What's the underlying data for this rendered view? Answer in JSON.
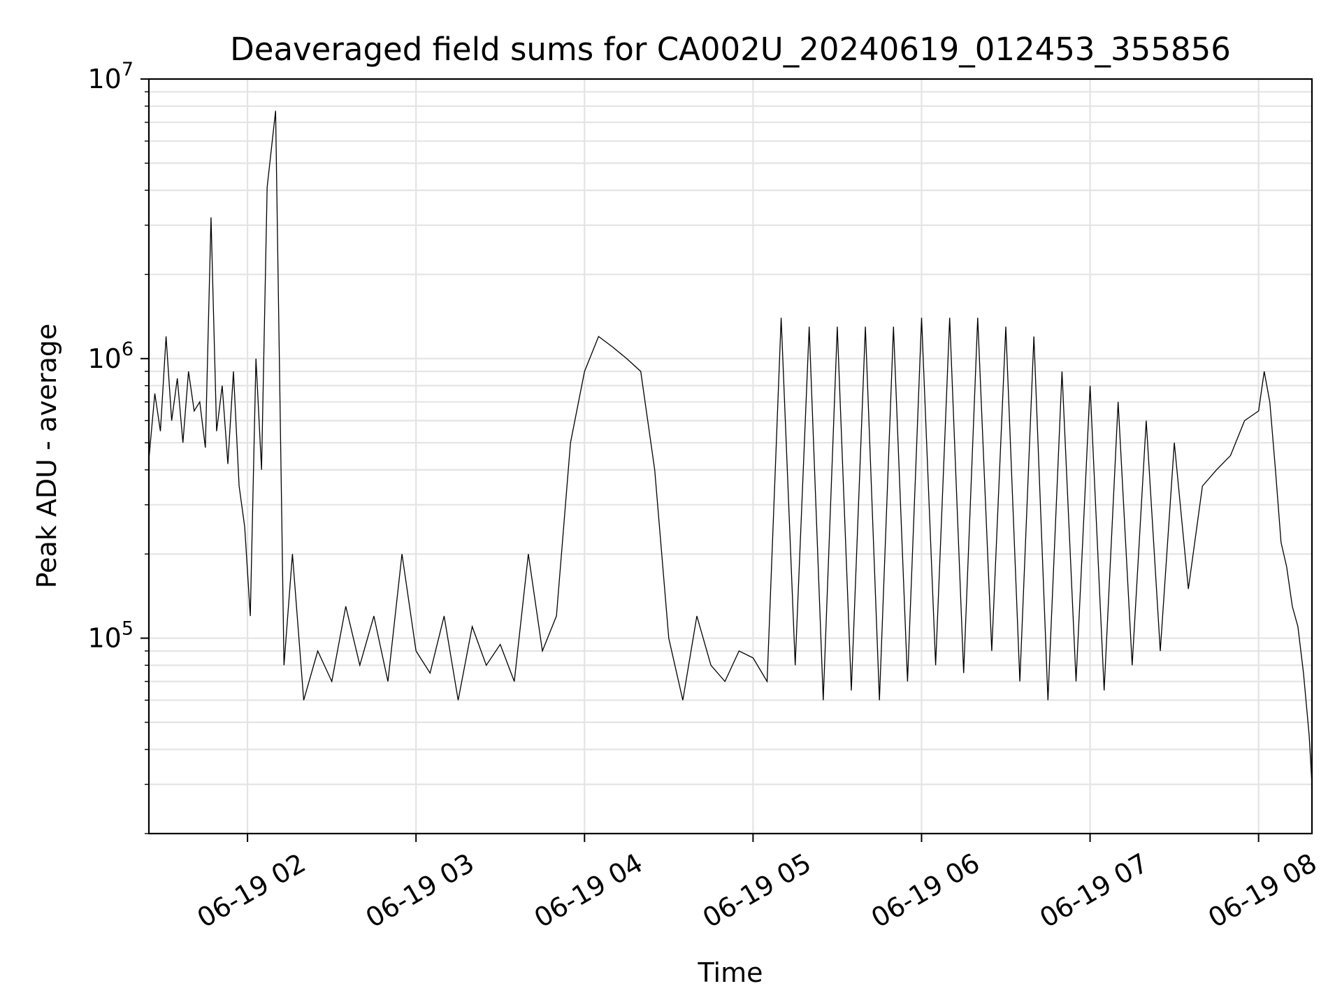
{
  "chart_data": {
    "type": "line",
    "title": "Deaveraged field sums for CA002U_20240619_012453_355856",
    "xlabel": "Time",
    "ylabel": "Peak ADU - average",
    "y_scale": "log",
    "ylim": [
      20000,
      10000000
    ],
    "xlim": [
      "06-19 01:24:53",
      "06-19 08:19:00"
    ],
    "x_ticks": [
      {
        "value": "06-19 02:00",
        "label": "06-19 02"
      },
      {
        "value": "06-19 03:00",
        "label": "06-19 03"
      },
      {
        "value": "06-19 04:00",
        "label": "06-19 04"
      },
      {
        "value": "06-19 05:00",
        "label": "06-19 05"
      },
      {
        "value": "06-19 06:00",
        "label": "06-19 06"
      },
      {
        "value": "06-19 07:00",
        "label": "06-19 07"
      },
      {
        "value": "06-19 08:00",
        "label": "06-19 08"
      }
    ],
    "y_ticks": [
      {
        "value": 100000,
        "base": "10",
        "exp": "5"
      },
      {
        "value": 1000000,
        "base": "10",
        "exp": "6"
      },
      {
        "value": 10000000,
        "base": "10",
        "exp": "7"
      }
    ],
    "grid": true,
    "line_color": "#000000",
    "series": [
      {
        "x": [
          "06-19 01:25",
          "06-19 01:27",
          "06-19 01:29",
          "06-19 01:31",
          "06-19 01:33",
          "06-19 01:35",
          "06-19 01:37",
          "06-19 01:39",
          "06-19 01:41",
          "06-19 01:43",
          "06-19 01:45",
          "06-19 01:47",
          "06-19 01:49",
          "06-19 01:51",
          "06-19 01:53",
          "06-19 01:55",
          "06-19 01:57",
          "06-19 01:59",
          "06-19 02:01",
          "06-19 02:03",
          "06-19 02:05",
          "06-19 02:07",
          "06-19 02:10",
          "06-19 02:13",
          "06-19 02:16",
          "06-19 02:20",
          "06-19 02:25",
          "06-19 02:30",
          "06-19 02:35",
          "06-19 02:40",
          "06-19 02:45",
          "06-19 02:50",
          "06-19 02:55",
          "06-19 03:00",
          "06-19 03:05",
          "06-19 03:10",
          "06-19 03:15",
          "06-19 03:20",
          "06-19 03:25",
          "06-19 03:30",
          "06-19 03:35",
          "06-19 03:40",
          "06-19 03:45",
          "06-19 03:50",
          "06-19 03:55",
          "06-19 04:00",
          "06-19 04:05",
          "06-19 04:10",
          "06-19 04:15",
          "06-19 04:20",
          "06-19 04:25",
          "06-19 04:30",
          "06-19 04:35",
          "06-19 04:40",
          "06-19 04:45",
          "06-19 04:50",
          "06-19 04:55",
          "06-19 05:00",
          "06-19 05:05",
          "06-19 05:10",
          "06-19 05:15",
          "06-19 05:20",
          "06-19 05:25",
          "06-19 05:30",
          "06-19 05:35",
          "06-19 05:40",
          "06-19 05:45",
          "06-19 05:50",
          "06-19 05:55",
          "06-19 06:00",
          "06-19 06:05",
          "06-19 06:10",
          "06-19 06:15",
          "06-19 06:20",
          "06-19 06:25",
          "06-19 06:30",
          "06-19 06:35",
          "06-19 06:40",
          "06-19 06:45",
          "06-19 06:50",
          "06-19 06:55",
          "06-19 07:00",
          "06-19 07:05",
          "06-19 07:10",
          "06-19 07:15",
          "06-19 07:20",
          "06-19 07:25",
          "06-19 07:30",
          "06-19 07:35",
          "06-19 07:40",
          "06-19 07:45",
          "06-19 07:50",
          "06-19 07:55",
          "06-19 08:00",
          "06-19 08:02",
          "06-19 08:04",
          "06-19 08:06",
          "06-19 08:08",
          "06-19 08:10",
          "06-19 08:12",
          "06-19 08:14",
          "06-19 08:16",
          "06-19 08:18",
          "06-19 08:19"
        ],
        "y": [
          450000,
          750000,
          550000,
          1200000,
          600000,
          850000,
          500000,
          900000,
          650000,
          700000,
          480000,
          3200000,
          550000,
          800000,
          420000,
          900000,
          350000,
          250000,
          120000,
          1000000,
          400000,
          4100000,
          7700000,
          80000,
          200000,
          60000,
          90000,
          70000,
          130000,
          80000,
          120000,
          70000,
          200000,
          90000,
          75000,
          120000,
          60000,
          110000,
          80000,
          95000,
          70000,
          200000,
          90000,
          120000,
          500000,
          900000,
          1200000,
          1100000,
          1000000,
          900000,
          400000,
          100000,
          60000,
          120000,
          80000,
          70000,
          90000,
          85000,
          70000,
          1400000,
          80000,
          1300000,
          60000,
          1300000,
          65000,
          1300000,
          60000,
          1300000,
          70000,
          1400000,
          80000,
          1400000,
          75000,
          1400000,
          90000,
          1300000,
          70000,
          1200000,
          60000,
          900000,
          70000,
          800000,
          65000,
          700000,
          80000,
          600000,
          90000,
          500000,
          150000,
          350000,
          400000,
          450000,
          600000,
          650000,
          900000,
          700000,
          400000,
          220000,
          180000,
          130000,
          110000,
          75000,
          45000,
          30000
        ]
      }
    ]
  }
}
